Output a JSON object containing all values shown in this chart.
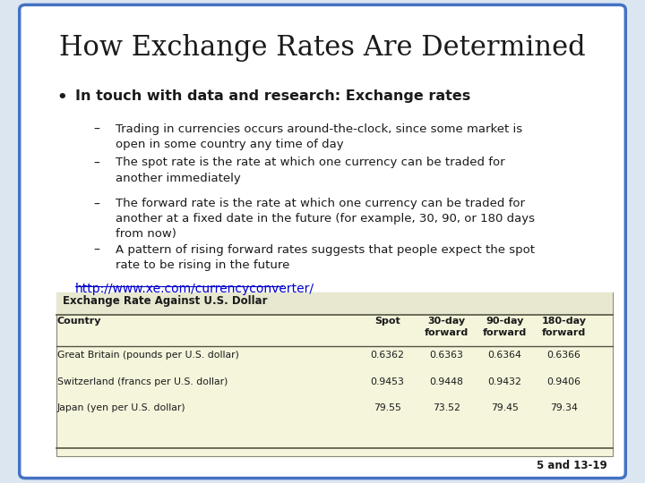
{
  "title": "How Exchange Rates Are Determined",
  "background_color": "#dce6f1",
  "slide_bg": "#ffffff",
  "border_color": "#4472c4",
  "bullet_main": "In touch with data and research: Exchange rates",
  "sub_bullets": [
    "Trading in currencies occurs around-the-clock, since some market is\nopen in some country any time of day",
    "The spot rate is the rate at which one currency can be traded for\nanother immediately",
    "The forward rate is the rate at which one currency can be traded for\nanother at a fixed date in the future (for example, 30, 90, or 180 days\nfrom now)",
    "A pattern of rising forward rates suggests that people expect the spot\nrate to be rising in the future"
  ],
  "link": "http://www.xe.com/currencyconverter/",
  "table_title": "Exchange Rate Against U.S. Dollar",
  "table_header": [
    "Country",
    "Spot",
    "30-day\nforward",
    "90-day\nforward",
    "180-day\nforward"
  ],
  "table_rows": [
    [
      "Great Britain (pounds per U.S. dollar)",
      "0.6362",
      "0.6363",
      "0.6364",
      "0.6366"
    ],
    [
      "Switzerland (francs per U.S. dollar)",
      "0.9453",
      "0.9448",
      "0.9432",
      "0.9406"
    ],
    [
      "Japan (yen per U.S. dollar)",
      "79.55",
      "73.52",
      "79.45",
      "79.34"
    ]
  ],
  "table_bg": "#f5f5dc",
  "table_header_bg": "#e8e8d0",
  "footer": "5 and 13-19",
  "title_fontsize": 22,
  "body_fontsize": 10,
  "link_color": "#0000cc"
}
